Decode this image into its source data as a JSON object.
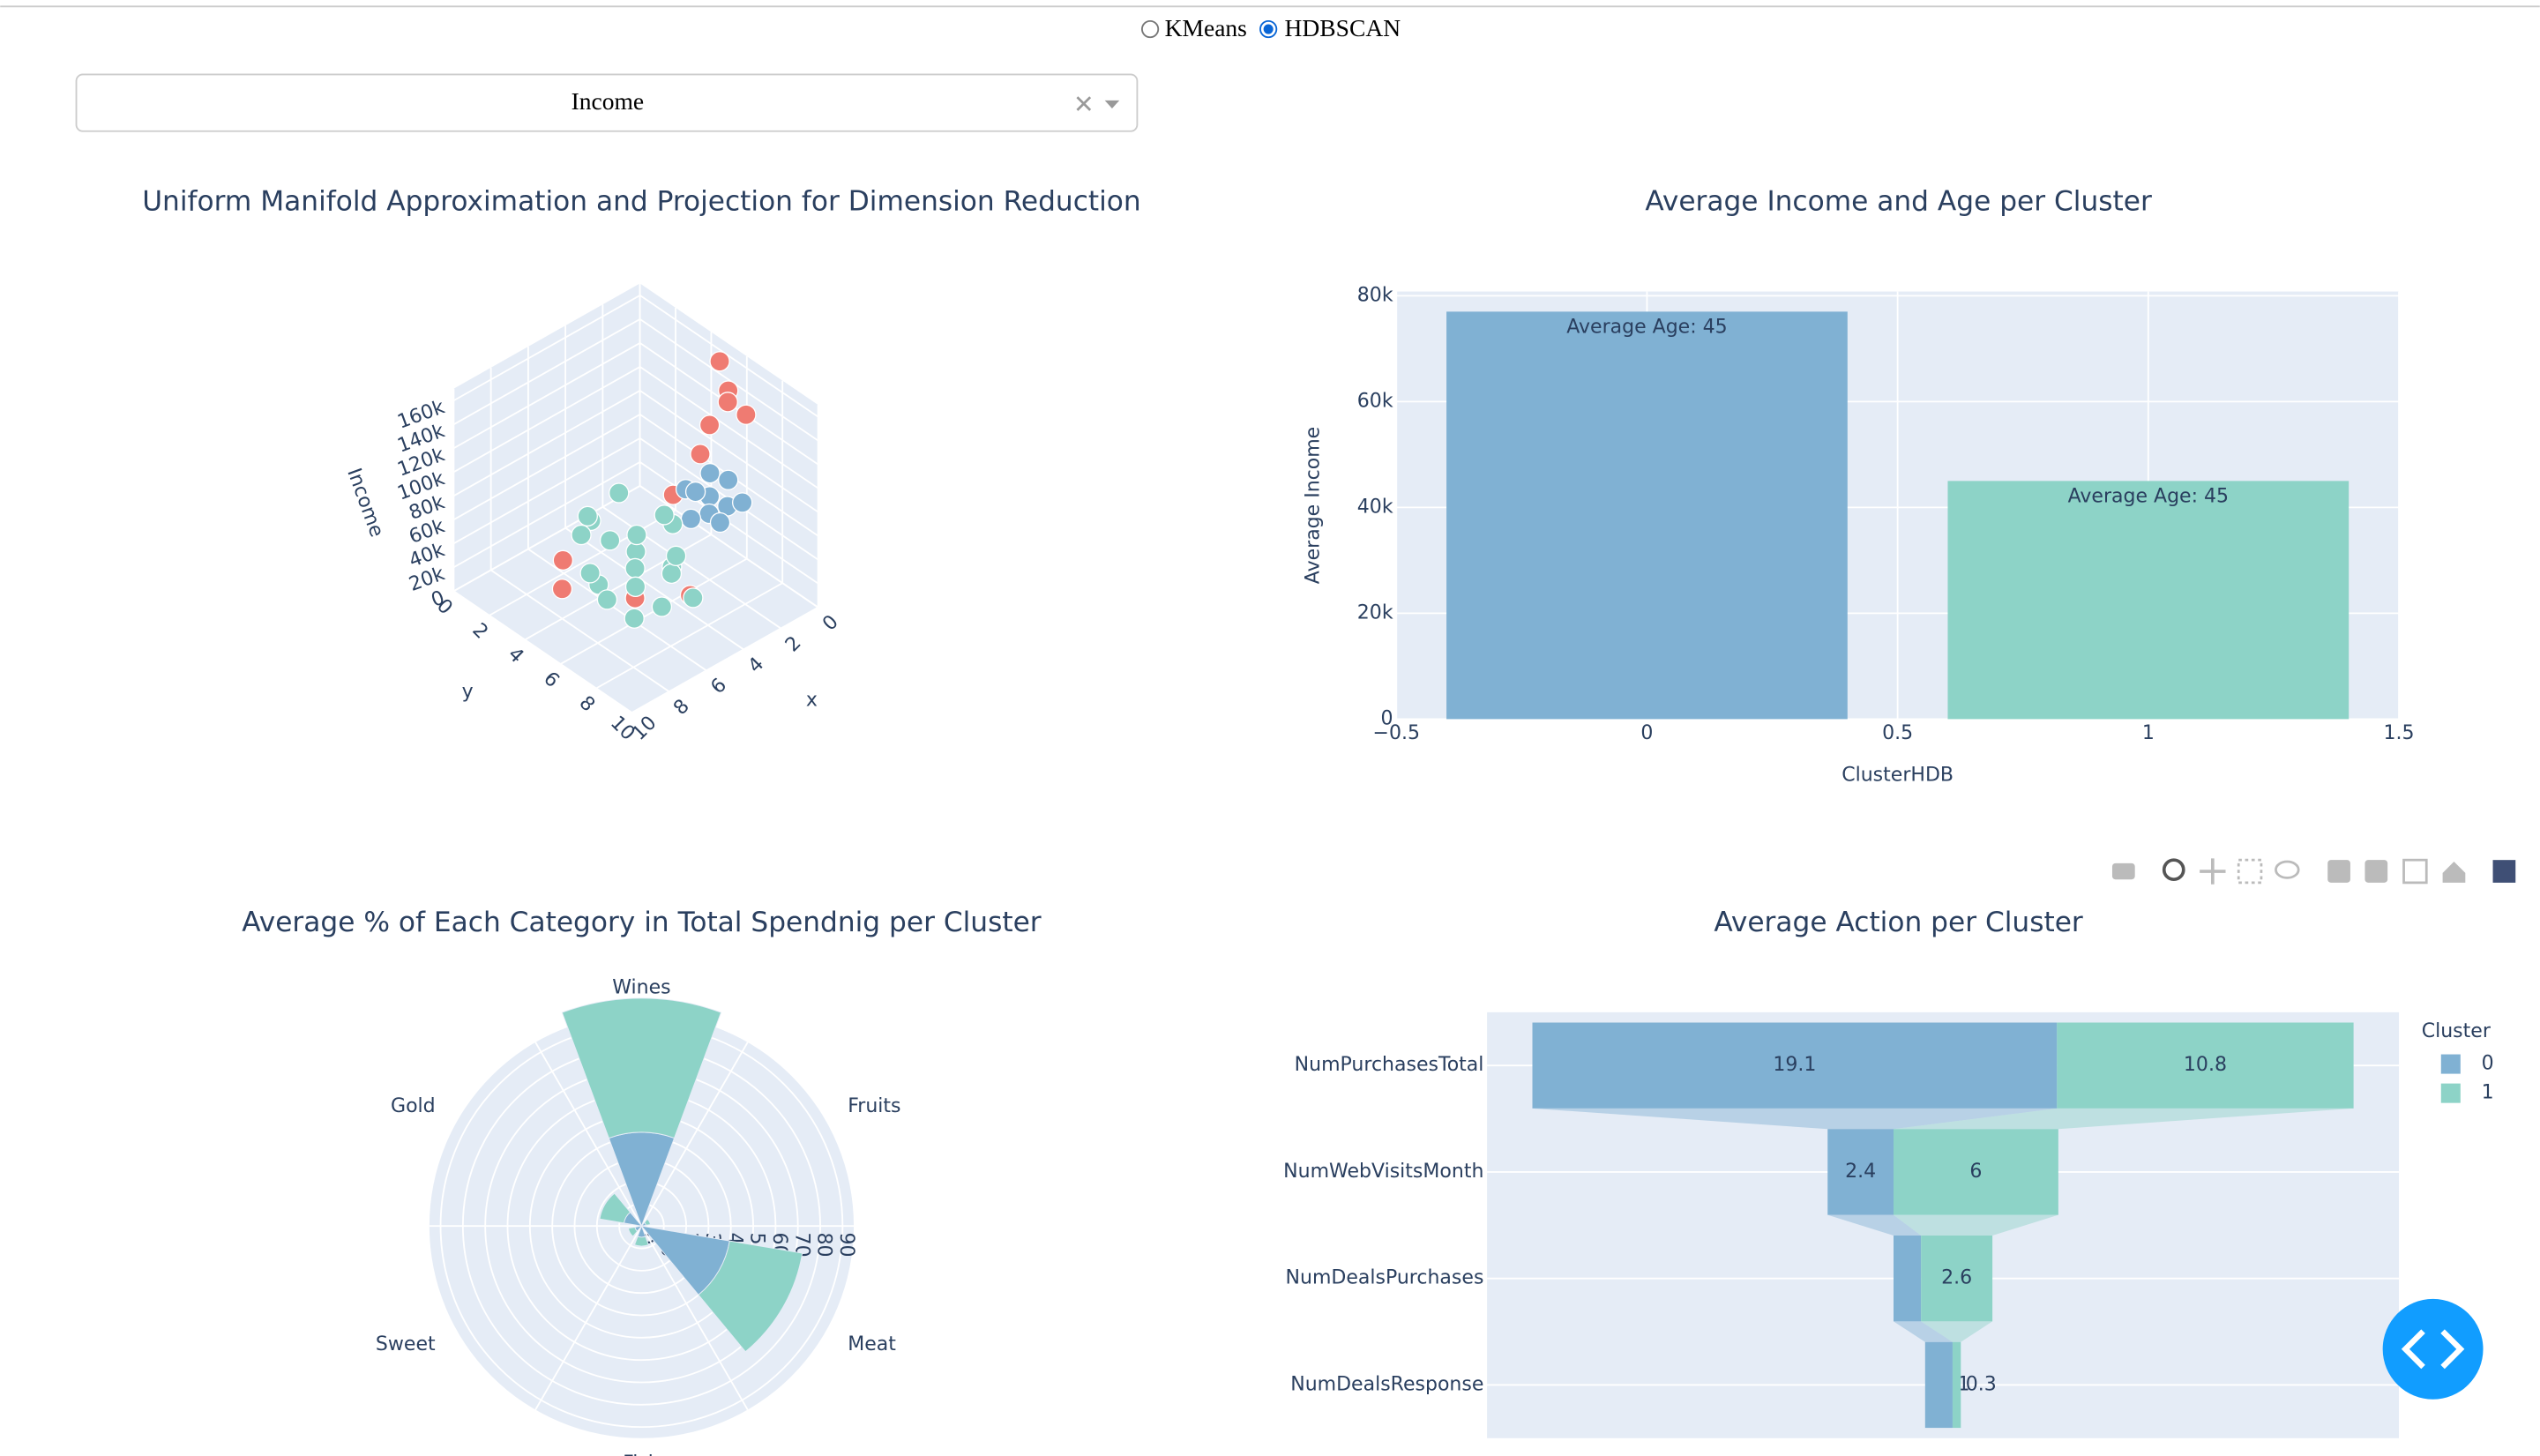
{
  "controls": {
    "radio": [
      "KMeans",
      "HDBSCAN"
    ],
    "selected": "HDBSCAN",
    "dropdown": "Income"
  },
  "chart_data": [
    {
      "type": "scatter3d",
      "title": "Uniform Manifold Approximation and Projection for Dimension Reduction",
      "xlabel": "x",
      "ylabel": "y",
      "zlabel": "Income",
      "xlim": [
        0,
        10
      ],
      "ylim": [
        0,
        10
      ],
      "zlim": [
        0,
        170000
      ],
      "xticks": [
        0,
        2,
        4,
        6,
        8,
        10
      ],
      "yticks": [
        0,
        2,
        4,
        6,
        8,
        10
      ],
      "zticks": [
        0,
        {
          "value": 20000,
          "label": "20k"
        },
        {
          "value": 40000,
          "label": "40k"
        },
        {
          "value": 60000,
          "label": "60k"
        },
        {
          "value": 80000,
          "label": "80k"
        },
        {
          "value": 100000,
          "label": "100k"
        },
        {
          "value": 120000,
          "label": "120k"
        },
        {
          "value": 140000,
          "label": "140k"
        },
        {
          "value": 160000,
          "label": "160k"
        }
      ],
      "series": [
        {
          "color": "#ef7b72",
          "x": [
            1,
            0.5,
            1.5,
            2,
            3,
            7,
            8,
            6,
            4,
            2.5,
            1
          ],
          "y": [
            6,
            5,
            6.5,
            6,
            5,
            3,
            4,
            6,
            7,
            6,
            7
          ],
          "z": [
            150000,
            160000,
            150000,
            130000,
            70000,
            30000,
            25000,
            20000,
            15000,
            110000,
            140000
          ]
        },
        {
          "color": "#80b1d3",
          "x": [
            2,
            1.5,
            2.5,
            1,
            3,
            2,
            1.2,
            2.8,
            1.8,
            2.2
          ],
          "y": [
            6,
            5.5,
            6.5,
            6,
            6,
            7,
            7,
            5.5,
            5,
            6.8
          ],
          "z": [
            70000,
            80000,
            65000,
            75000,
            60000,
            72000,
            68000,
            78000,
            62000,
            58000
          ]
        },
        {
          "color": "#8dd3c7",
          "x": [
            5,
            4,
            6,
            7,
            5.5,
            3.5,
            6.5,
            4.5,
            5,
            7.5,
            6,
            4,
            3,
            5.5,
            6.5,
            4.8,
            5.2,
            7,
            3.8,
            6.2
          ],
          "y": [
            5,
            4,
            6,
            5,
            3,
            5.5,
            4,
            6.5,
            7,
            6,
            7.5,
            3,
            4.5,
            5.5,
            3.5,
            8,
            2.5,
            7,
            6,
            4.8
          ],
          "z": [
            40000,
            35000,
            45000,
            30000,
            50000,
            55000,
            25000,
            38000,
            42000,
            32000,
            28000,
            60000,
            48000,
            20000,
            52000,
            30000,
            46000,
            22000,
            36000,
            58000
          ]
        }
      ]
    },
    {
      "type": "bar",
      "title": "Average Income and Age per Cluster",
      "xlabel": "ClusterHDB",
      "ylabel": "Average Income",
      "x": [
        0,
        1
      ],
      "values": [
        77000,
        45000
      ],
      "colors": [
        "#80b1d3",
        "#8dd3c7"
      ],
      "annotations": [
        "Average Age: 45",
        "Average Age: 45"
      ],
      "xlim": [
        -0.5,
        1.5
      ],
      "xticks": [
        {
          "value": -0.5,
          "label": "−0.5"
        },
        0,
        0.5,
        1,
        1.5
      ],
      "ylim": [
        0,
        80800
      ],
      "yticks": [
        0,
        {
          "value": 20000,
          "label": "20k"
        },
        {
          "value": 40000,
          "label": "40k"
        },
        {
          "value": 60000,
          "label": "60k"
        },
        {
          "value": 80000,
          "label": "80k"
        }
      ],
      "grid": true
    },
    {
      "type": "barpolar",
      "title": "Average % of Each Category in Total Spendnig per Cluster",
      "categories": [
        "Wines",
        "Fruits",
        "Meat",
        "Fish",
        "Sweet",
        "Gold"
      ],
      "series": [
        {
          "color": "#80b1d3",
          "values": [
            42,
            2,
            40,
            5,
            3,
            8
          ]
        },
        {
          "color": "#8dd3c7",
          "values": [
            60,
            2,
            33,
            4,
            3,
            11
          ]
        }
      ],
      "rlim": [
        0,
        95
      ],
      "rticks": [
        0,
        10,
        20,
        30,
        40,
        50,
        60,
        70,
        80,
        90
      ]
    },
    {
      "type": "funnel",
      "title": "Average Action per Cluster",
      "legend_title": "Cluster",
      "categories": [
        "NumPurchasesTotal",
        "NumWebVisitsMonth",
        "NumDealsPurchases",
        "NumDealsResponse"
      ],
      "series": [
        {
          "name": "0",
          "color": "#80b1d3",
          "values": [
            19.1,
            2.4,
            1,
            1
          ]
        },
        {
          "name": "1",
          "color": "#8dd3c7",
          "values": [
            10.8,
            6,
            2.6,
            0.3
          ]
        }
      ]
    }
  ]
}
